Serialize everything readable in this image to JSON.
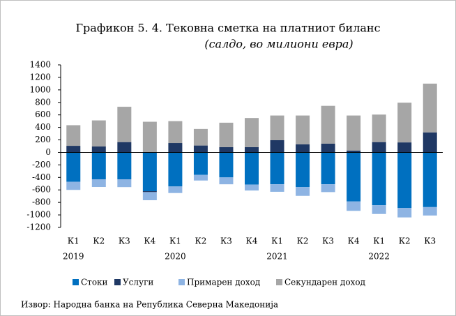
{
  "chart_data": {
    "type": "stacked-bar",
    "title": "Графикон 5. 4. Тековна сметка на платниот биланс",
    "subtitle": "(салдо, во милиони евра)",
    "categories": [
      "К1",
      "К2",
      "К3",
      "К4",
      "К1",
      "К2",
      "К3",
      "К4",
      "К1",
      "К2",
      "К3",
      "К4",
      "К1",
      "К2",
      "К3"
    ],
    "year_labels": [
      "2019",
      null,
      null,
      null,
      "2020",
      null,
      null,
      null,
      "2021",
      null,
      null,
      null,
      "2022",
      null,
      null
    ],
    "series": [
      {
        "name": "Стоки",
        "color": "#0070c0",
        "values": [
          -470,
          -430,
          -430,
          -620,
          -545,
          -360,
          -400,
          -515,
          -510,
          -555,
          -510,
          -785,
          -845,
          -890,
          -875
        ]
      },
      {
        "name": "Услуги",
        "color": "#1f3864",
        "values": [
          105,
          95,
          165,
          -15,
          150,
          110,
          85,
          85,
          195,
          130,
          140,
          30,
          165,
          160,
          320
        ]
      },
      {
        "name": "Примарен доход",
        "color": "#8eb4e3",
        "values": [
          -130,
          -123,
          -125,
          -130,
          -105,
          -90,
          -110,
          -95,
          -120,
          -140,
          -125,
          -150,
          -140,
          -150,
          -135
        ]
      },
      {
        "name": "Секундарен доход",
        "color": "#a6a6a6",
        "values": [
          330,
          417,
          565,
          490,
          350,
          265,
          390,
          465,
          395,
          460,
          605,
          560,
          440,
          635,
          780
        ]
      }
    ],
    "ylim": [
      -1200,
      1400
    ],
    "yticks": [
      -1200,
      -1000,
      -800,
      -600,
      -400,
      -200,
      0,
      200,
      400,
      600,
      800,
      1000,
      1200,
      1400
    ],
    "legend": "bottom",
    "source": "Извор: Народна банка на Република Северна Македонија"
  }
}
